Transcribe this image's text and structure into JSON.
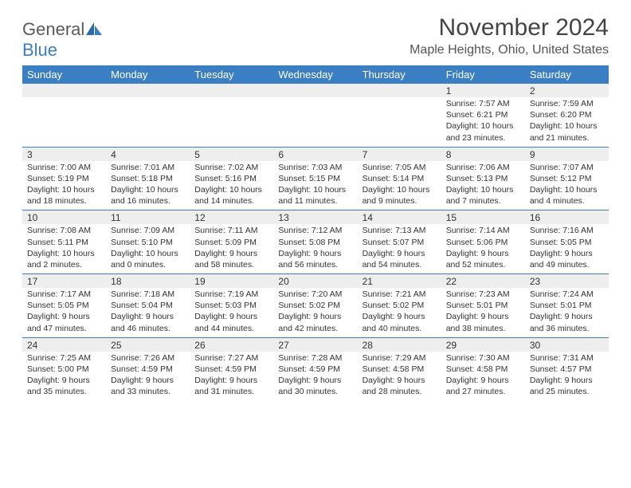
{
  "brand": {
    "part1": "General",
    "part2": "Blue"
  },
  "title": "November 2024",
  "location": "Maple Heights, Ohio, United States",
  "colors": {
    "header_bg": "#3a7fc4",
    "header_text": "#ffffff",
    "date_bg": "#eeeeee",
    "rule": "#3a7fc4",
    "body_text": "#333333",
    "title_text": "#444444"
  },
  "day_names": [
    "Sunday",
    "Monday",
    "Tuesday",
    "Wednesday",
    "Thursday",
    "Friday",
    "Saturday"
  ],
  "weeks": [
    [
      null,
      null,
      null,
      null,
      null,
      {
        "d": "1",
        "sr": "7:57 AM",
        "ss": "6:21 PM",
        "dl": "10 hours and 23 minutes."
      },
      {
        "d": "2",
        "sr": "7:59 AM",
        "ss": "6:20 PM",
        "dl": "10 hours and 21 minutes."
      }
    ],
    [
      {
        "d": "3",
        "sr": "7:00 AM",
        "ss": "5:19 PM",
        "dl": "10 hours and 18 minutes."
      },
      {
        "d": "4",
        "sr": "7:01 AM",
        "ss": "5:18 PM",
        "dl": "10 hours and 16 minutes."
      },
      {
        "d": "5",
        "sr": "7:02 AM",
        "ss": "5:16 PM",
        "dl": "10 hours and 14 minutes."
      },
      {
        "d": "6",
        "sr": "7:03 AM",
        "ss": "5:15 PM",
        "dl": "10 hours and 11 minutes."
      },
      {
        "d": "7",
        "sr": "7:05 AM",
        "ss": "5:14 PM",
        "dl": "10 hours and 9 minutes."
      },
      {
        "d": "8",
        "sr": "7:06 AM",
        "ss": "5:13 PM",
        "dl": "10 hours and 7 minutes."
      },
      {
        "d": "9",
        "sr": "7:07 AM",
        "ss": "5:12 PM",
        "dl": "10 hours and 4 minutes."
      }
    ],
    [
      {
        "d": "10",
        "sr": "7:08 AM",
        "ss": "5:11 PM",
        "dl": "10 hours and 2 minutes."
      },
      {
        "d": "11",
        "sr": "7:09 AM",
        "ss": "5:10 PM",
        "dl": "10 hours and 0 minutes."
      },
      {
        "d": "12",
        "sr": "7:11 AM",
        "ss": "5:09 PM",
        "dl": "9 hours and 58 minutes."
      },
      {
        "d": "13",
        "sr": "7:12 AM",
        "ss": "5:08 PM",
        "dl": "9 hours and 56 minutes."
      },
      {
        "d": "14",
        "sr": "7:13 AM",
        "ss": "5:07 PM",
        "dl": "9 hours and 54 minutes."
      },
      {
        "d": "15",
        "sr": "7:14 AM",
        "ss": "5:06 PM",
        "dl": "9 hours and 52 minutes."
      },
      {
        "d": "16",
        "sr": "7:16 AM",
        "ss": "5:05 PM",
        "dl": "9 hours and 49 minutes."
      }
    ],
    [
      {
        "d": "17",
        "sr": "7:17 AM",
        "ss": "5:05 PM",
        "dl": "9 hours and 47 minutes."
      },
      {
        "d": "18",
        "sr": "7:18 AM",
        "ss": "5:04 PM",
        "dl": "9 hours and 46 minutes."
      },
      {
        "d": "19",
        "sr": "7:19 AM",
        "ss": "5:03 PM",
        "dl": "9 hours and 44 minutes."
      },
      {
        "d": "20",
        "sr": "7:20 AM",
        "ss": "5:02 PM",
        "dl": "9 hours and 42 minutes."
      },
      {
        "d": "21",
        "sr": "7:21 AM",
        "ss": "5:02 PM",
        "dl": "9 hours and 40 minutes."
      },
      {
        "d": "22",
        "sr": "7:23 AM",
        "ss": "5:01 PM",
        "dl": "9 hours and 38 minutes."
      },
      {
        "d": "23",
        "sr": "7:24 AM",
        "ss": "5:01 PM",
        "dl": "9 hours and 36 minutes."
      }
    ],
    [
      {
        "d": "24",
        "sr": "7:25 AM",
        "ss": "5:00 PM",
        "dl": "9 hours and 35 minutes."
      },
      {
        "d": "25",
        "sr": "7:26 AM",
        "ss": "4:59 PM",
        "dl": "9 hours and 33 minutes."
      },
      {
        "d": "26",
        "sr": "7:27 AM",
        "ss": "4:59 PM",
        "dl": "9 hours and 31 minutes."
      },
      {
        "d": "27",
        "sr": "7:28 AM",
        "ss": "4:59 PM",
        "dl": "9 hours and 30 minutes."
      },
      {
        "d": "28",
        "sr": "7:29 AM",
        "ss": "4:58 PM",
        "dl": "9 hours and 28 minutes."
      },
      {
        "d": "29",
        "sr": "7:30 AM",
        "ss": "4:58 PM",
        "dl": "9 hours and 27 minutes."
      },
      {
        "d": "30",
        "sr": "7:31 AM",
        "ss": "4:57 PM",
        "dl": "9 hours and 25 minutes."
      }
    ]
  ],
  "labels": {
    "sunrise": "Sunrise:",
    "sunset": "Sunset:",
    "daylight": "Daylight:"
  }
}
